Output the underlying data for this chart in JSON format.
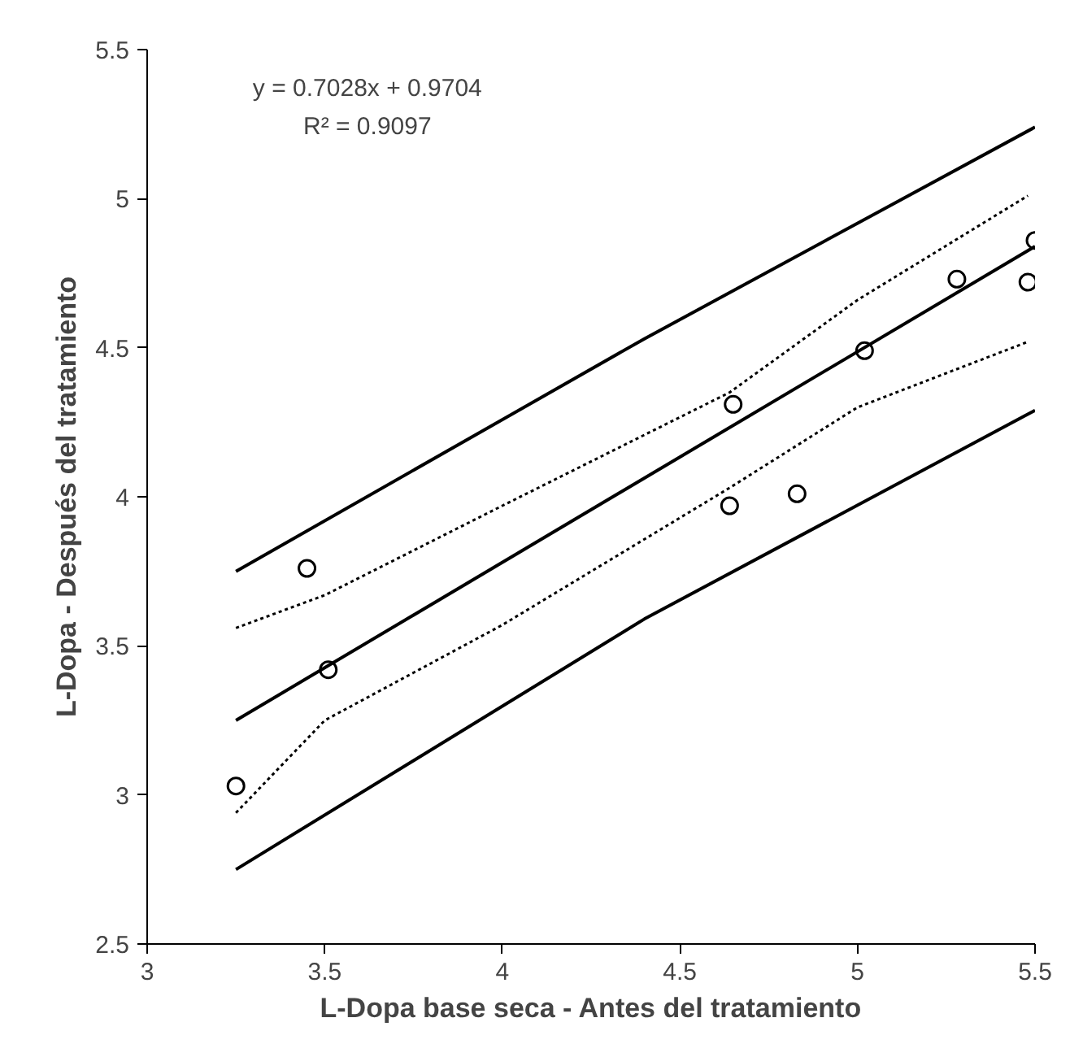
{
  "chart_data": {
    "type": "scatter",
    "xlabel": "L-Dopa base seca - Antes del tratamiento",
    "ylabel": "L-Dopa - Después del tratamiento",
    "xlim": [
      3,
      5.5
    ],
    "ylim": [
      2.5,
      5.5
    ],
    "xticks": [
      3,
      3.5,
      4,
      4.5,
      5,
      5.5
    ],
    "yticks": [
      2.5,
      3,
      3.5,
      4,
      4.5,
      5,
      5.5
    ],
    "grid": false,
    "annotations": [
      "y = 0.7028x + 0.9704",
      "R² = 0.9097"
    ],
    "series": [
      {
        "marker": "circle",
        "color": "#000000",
        "x": [
          3.25,
          3.45,
          3.51,
          4.64,
          4.65,
          4.83,
          5.02,
          5.28,
          5.48,
          5.5
        ],
        "values": [
          3.03,
          3.76,
          3.42,
          3.97,
          4.31,
          4.01,
          4.49,
          4.73,
          4.72,
          4.86
        ]
      },
      {
        "type": "line",
        "marker": "none",
        "line_style": "solid",
        "color": "#000000",
        "x": [
          3.25,
          5.5
        ],
        "values": [
          3.25,
          4.84
        ]
      },
      {
        "type": "line",
        "marker": "none",
        "line_style": "dotted",
        "color": "#000000",
        "x": [
          3.25,
          3.5,
          4,
          4.64,
          5,
          5.48
        ],
        "values": [
          3.56,
          3.67,
          3.97,
          4.35,
          4.66,
          5.01
        ]
      },
      {
        "type": "line",
        "marker": "none",
        "line_style": "dotted",
        "color": "#000000",
        "x": [
          3.25,
          3.5,
          4,
          4.64,
          5,
          5.48
        ],
        "values": [
          2.94,
          3.25,
          3.57,
          4.03,
          4.3,
          4.52
        ]
      },
      {
        "type": "line",
        "marker": "none",
        "line_style": "solid",
        "color": "#000000",
        "x": [
          3.25,
          4.4,
          5.5
        ],
        "values": [
          3.75,
          4.53,
          5.24
        ]
      },
      {
        "type": "line",
        "marker": "none",
        "line_style": "solid",
        "color": "#000000",
        "x": [
          3.25,
          4.4,
          5.5
        ],
        "values": [
          2.75,
          3.59,
          4.29
        ]
      }
    ]
  }
}
